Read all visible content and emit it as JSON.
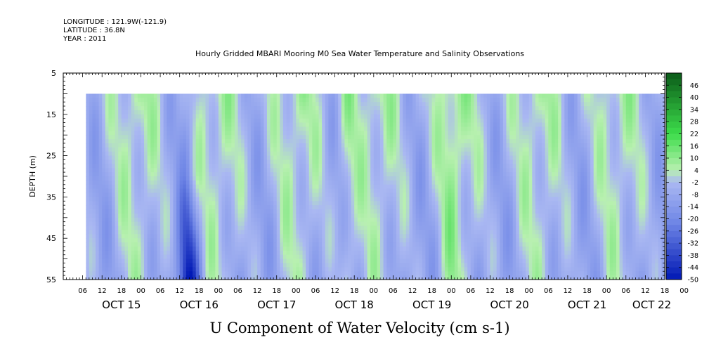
{
  "header": {
    "lines": [
      "LONGITUDE : 121.9W(-121.9)",
      "LATITUDE : 36.8N",
      "YEAR : 2011"
    ]
  },
  "chart_data": {
    "type": "heatmap",
    "title": "Hourly Gridded MBARI Mooring M0 Sea Water Temperature and Salinity Observations",
    "subtitle": "U Component of Water Velocity (cm s-1)",
    "xlabel": "",
    "ylabel": "DEPTH (m)",
    "y_range": [
      5,
      55
    ],
    "y_inverted": true,
    "y_ticks": [
      5,
      15,
      25,
      35,
      45,
      55
    ],
    "x_range_hours": [
      0,
      186
    ],
    "x_hour_ticks": [
      "06",
      "12",
      "18",
      "00",
      "06",
      "12",
      "18",
      "00",
      "06",
      "12",
      "18",
      "00",
      "06",
      "12",
      "18",
      "00",
      "06",
      "12",
      "18",
      "00",
      "06",
      "12",
      "18",
      "00",
      "06",
      "12",
      "18",
      "00",
      "06",
      "12",
      "18",
      "00"
    ],
    "x_day_labels": [
      "OCT 15",
      "OCT 16",
      "OCT 17",
      "OCT 18",
      "OCT 19",
      "OCT 20",
      "OCT 21",
      "OCT 22"
    ],
    "data_extent": {
      "hour_start": 7,
      "hour_end": 186,
      "depth_top": 10,
      "depth_bottom": 55
    },
    "colorbar": {
      "labels": [
        "46",
        "40",
        "34",
        "28",
        "22",
        "16",
        "10",
        "4",
        "-2",
        "-8",
        "-14",
        "-20",
        "-26",
        "-32",
        "-38",
        "-44",
        "-50"
      ],
      "min": -50,
      "max": 52
    },
    "colors": {
      "negative_strong": "#0018b4",
      "negative_mid": "#6f86e6",
      "neutral_low": "#aab8f2",
      "positive_low": "#b8f0b0",
      "positive_mid": "#3ddc4a",
      "positive_strong": "#0a5a18"
    }
  }
}
